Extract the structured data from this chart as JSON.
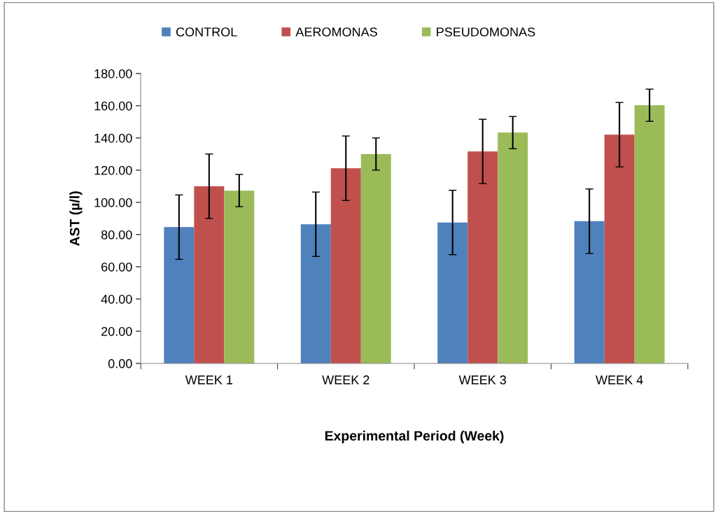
{
  "chart_data": {
    "type": "bar",
    "xlabel": "Experimental Period (Week)",
    "ylabel": "AST (µ/l)",
    "categories": [
      "WEEK 1",
      "WEEK 2",
      "WEEK 3",
      "WEEK 4"
    ],
    "series": [
      {
        "name": "CONTROL",
        "color": "#4f81bd",
        "values": [
          84.6,
          86.4,
          87.5,
          88.3
        ],
        "errors": [
          20,
          20,
          20,
          20
        ]
      },
      {
        "name": "AEROMONAS",
        "color": "#c0504d",
        "values": [
          110,
          121.2,
          131.6,
          142
        ],
        "errors": [
          20,
          20,
          20,
          20
        ]
      },
      {
        "name": "PSEUDOMONAS",
        "color": "#9bbb59",
        "values": [
          107.3,
          130,
          143.3,
          160.3
        ],
        "errors": [
          10,
          10,
          10,
          10
        ]
      }
    ],
    "ylim": [
      0,
      180
    ],
    "yticks": [
      {
        "value": 0,
        "label": "0.00"
      },
      {
        "value": 20,
        "label": "20.00"
      },
      {
        "value": 40,
        "label": "40.00"
      },
      {
        "value": 60,
        "label": "60.00"
      },
      {
        "value": 80,
        "label": "80.00"
      },
      {
        "value": 100,
        "label": "100.00"
      },
      {
        "value": 120,
        "label": "120.00"
      },
      {
        "value": 140,
        "label": "140.00"
      },
      {
        "value": 160,
        "label": "160.00"
      },
      {
        "value": 180,
        "label": "180.00"
      }
    ],
    "legend": "top",
    "grid": false
  }
}
